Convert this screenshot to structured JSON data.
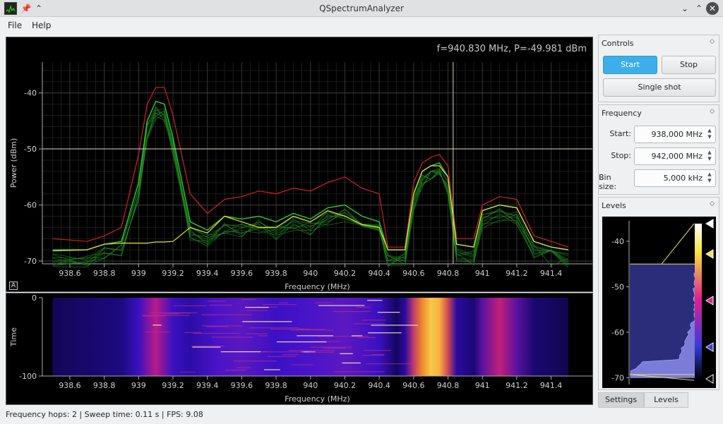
{
  "window": {
    "title": "QSpectrumAnalyzer"
  },
  "menu": {
    "file": "File",
    "help": "Help"
  },
  "spectrum": {
    "readout": "f=940.830 MHz, P=-49.981 dBm",
    "ylabel": "Power (dBm)",
    "xlabel": "Frequency (MHz)",
    "auto_label": "A",
    "cursor_freq_mhz": 940.83,
    "cursor_power_dbm": -49.981
  },
  "waterfall": {
    "ylabel": "Time",
    "xlabel": "Frequency (MHz)"
  },
  "chart_data": [
    {
      "type": "line",
      "ylabel": "Power (dBm)",
      "xlabel": "Frequency (MHz)",
      "xlim": [
        938.44,
        941.64
      ],
      "ylim": [
        -70.5,
        -34.5
      ],
      "xticks": [
        "938.6",
        "938.8",
        "939",
        "939.2",
        "939.4",
        "939.6",
        "939.8",
        "940",
        "940.2",
        "940.4",
        "940.6",
        "940.8",
        "941",
        "941.2",
        "941.4"
      ],
      "yticks": [
        "-40",
        "-50",
        "-60",
        "-70"
      ],
      "grid": true,
      "colors": {
        "peak_hold": "#d42020",
        "traces": "#2ecc2e",
        "main": "#e8e23a",
        "cursor": "#d7d7a0"
      },
      "series": [
        {
          "x": [
            938.5,
            938.7,
            938.8,
            938.9,
            939.0,
            939.05,
            939.1,
            939.15,
            939.2,
            939.3,
            939.4,
            939.5,
            939.6,
            939.7,
            939.8,
            939.9,
            940.0,
            940.1,
            940.2,
            940.3,
            940.4,
            940.45,
            940.55,
            940.6,
            940.65,
            940.7,
            940.75,
            940.8,
            940.85,
            940.95,
            941.0,
            941.1,
            941.2,
            941.3,
            941.4,
            941.5
          ],
          "y": [
            -66,
            -66.5,
            -65.5,
            -64,
            -51,
            -42,
            -39,
            -39,
            -44,
            -58,
            -61.5,
            -59,
            -58.5,
            -57.5,
            -58,
            -57,
            -57.5,
            -56,
            -55,
            -57,
            -58,
            -67.5,
            -67.5,
            -56,
            -52.5,
            -51.5,
            -51,
            -53,
            -66,
            -66,
            -60,
            -58.5,
            -59,
            -65.5,
            -66.5,
            -67.5
          ]
        },
        {
          "x": [
            938.5,
            938.7,
            938.8,
            938.9,
            939.0,
            939.05,
            939.1,
            939.15,
            939.2,
            939.3,
            939.4,
            939.5,
            939.6,
            939.7,
            939.8,
            939.9,
            940.0,
            940.1,
            940.2,
            940.3,
            940.4,
            940.45,
            940.55,
            940.6,
            940.65,
            940.7,
            940.75,
            940.8,
            940.85,
            940.95,
            941.0,
            941.1,
            941.2,
            941.3,
            941.4,
            941.5
          ],
          "y": [
            -68,
            -68,
            -67,
            -66.5,
            -56,
            -45,
            -41.5,
            -42,
            -48,
            -63,
            -64.5,
            -62,
            -62.5,
            -62,
            -63,
            -61.5,
            -62.5,
            -60.5,
            -60,
            -62,
            -63,
            -68,
            -68,
            -58,
            -54,
            -53,
            -52.5,
            -55,
            -67,
            -67.5,
            -61,
            -60,
            -60.5,
            -66.5,
            -67.5,
            -68
          ]
        },
        {
          "x": [
            938.5,
            938.7,
            938.8,
            938.9,
            939.0,
            939.05,
            939.1,
            939.15,
            939.2,
            939.3,
            939.4,
            939.5,
            939.6,
            939.7,
            939.8,
            939.9,
            940.0,
            940.1,
            940.2,
            940.3,
            940.4,
            940.45,
            940.55,
            940.6,
            940.65,
            940.7,
            940.75,
            940.8,
            940.85,
            940.95,
            941.0,
            941.1,
            941.2,
            941.3,
            941.4,
            941.5
          ],
          "y": [
            -68.2,
            -68,
            -67,
            -66.8,
            -66.8,
            -66.8,
            -66.6,
            -66.6,
            -66.5,
            -64,
            -65,
            -62,
            -63,
            -64,
            -64,
            -62,
            -63,
            -61,
            -62,
            -63.5,
            -64,
            -68,
            -68,
            -58,
            -54,
            -53,
            -53,
            -55,
            -67,
            -67.5,
            -61,
            -60,
            -60.5,
            -66.5,
            -67.5,
            -68
          ]
        }
      ]
    },
    {
      "type": "heatmap",
      "ylabel": "Time",
      "xlabel": "Frequency (MHz)",
      "xlim": [
        938.44,
        941.64
      ],
      "ylim": [
        -100,
        0
      ],
      "xticks": [
        "938.6",
        "938.8",
        "939",
        "939.2",
        "939.4",
        "939.6",
        "939.8",
        "940",
        "940.2",
        "940.4",
        "940.6",
        "940.8",
        "941",
        "941.2",
        "941.4"
      ],
      "yticks": [
        "0",
        "-100"
      ],
      "colormap": [
        "#000000",
        "#1a0a70",
        "#3b0fd6",
        "#c7147f",
        "#f06a1e",
        "#f7d146",
        "#ffffff"
      ]
    }
  ],
  "controls": {
    "title": "Controls",
    "start": "Start",
    "stop": "Stop",
    "single_shot": "Single shot"
  },
  "frequency": {
    "title": "Frequency",
    "start_label": "Start:",
    "start_value": "938,000 MHz",
    "stop_label": "Stop:",
    "stop_value": "942,000 MHz",
    "bin_label": "Bin size:",
    "bin_value": "5,000 kHz"
  },
  "levels": {
    "title": "Levels",
    "ticks": [
      "-40",
      "-50",
      "-60",
      "-70"
    ],
    "ylim": [
      -71.5,
      -35.5
    ],
    "upper_level": -45.0,
    "lower_level": -69.3
  },
  "tabs": {
    "settings": "Settings",
    "levels": "Levels"
  },
  "status": {
    "text": "Frequency hops: 2 | Sweep time: 0.11 s | FPS: 9.08"
  }
}
